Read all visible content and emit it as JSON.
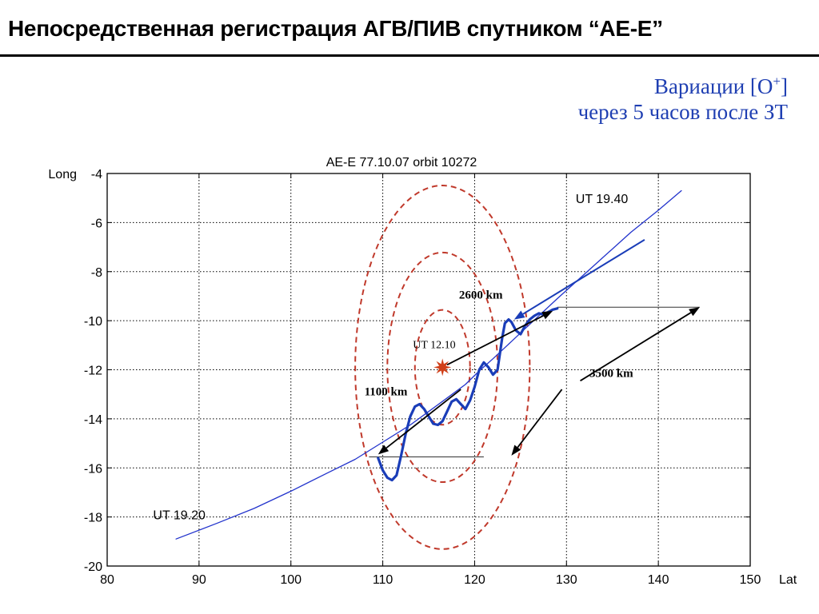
{
  "slide_title": "Непосредственная регистрация АГВ/ПИВ спутником “AE-E”",
  "note": {
    "line1_prefix": "Вариации [O",
    "line1_sup": "+",
    "line1_suffix": "]",
    "line2": "через 5 часов после ЗТ"
  },
  "colors": {
    "track": "#2233cc",
    "variation": "#1a3db8",
    "circles": "#c0392b",
    "arrows": "#000000",
    "note": "#1f3fb2"
  },
  "chart_data": {
    "type": "line",
    "title": "AE-E    77.10.07    orbit 10272",
    "xlabel": "Lat",
    "ylabel": "Long",
    "xlim": [
      80,
      150
    ],
    "ylim": [
      -20,
      -4
    ],
    "x_ticks": [
      80,
      90,
      100,
      110,
      120,
      130,
      140,
      150
    ],
    "y_ticks": [
      -4,
      -6,
      -8,
      -10,
      -12,
      -14,
      -16,
      -18,
      -20
    ],
    "grid": true,
    "series": [
      {
        "kind": "track",
        "x": [
          87.5,
          92,
          96,
          100,
          104,
          107,
          110,
          113,
          115,
          117,
          119,
          120.5,
          122,
          124,
          126,
          129,
          133,
          137,
          140,
          142.5
        ],
        "y": [
          -18.9,
          -18.25,
          -17.65,
          -16.95,
          -16.2,
          -15.65,
          -14.95,
          -14.25,
          -13.7,
          -13.15,
          -12.6,
          -12.05,
          -11.55,
          -10.85,
          -10.15,
          -9.1,
          -7.75,
          -6.4,
          -5.5,
          -4.7
        ]
      },
      {
        "kind": "variation",
        "x": [
          109.5,
          110,
          110.5,
          111,
          111.5,
          112,
          112.5,
          113,
          113.5,
          114,
          114.5,
          115,
          115.5,
          116,
          116.5,
          117,
          117.5,
          118,
          118.5,
          119,
          119.5,
          120,
          120.5,
          121,
          121.5,
          122,
          122.5,
          123,
          123.3,
          123.7,
          124,
          124.5,
          125,
          125.5,
          126,
          126.5,
          127,
          127.5,
          128,
          128.5,
          129
        ],
        "y": [
          -15.6,
          -16.1,
          -16.4,
          -16.5,
          -16.3,
          -15.5,
          -14.6,
          -13.9,
          -13.5,
          -13.4,
          -13.6,
          -13.9,
          -14.2,
          -14.25,
          -14.1,
          -13.7,
          -13.3,
          -13.2,
          -13.4,
          -13.6,
          -13.25,
          -12.7,
          -12.0,
          -11.7,
          -11.9,
          -12.2,
          -12.0,
          -10.7,
          -10.1,
          -9.95,
          -10.05,
          -10.4,
          -10.55,
          -10.2,
          -9.95,
          -9.8,
          -9.7,
          -9.75,
          -9.65,
          -9.55,
          -9.5
        ]
      }
    ],
    "center": {
      "x": 116.5,
      "y": -11.9,
      "label": "UT 12.10"
    },
    "circle_radii": [
      3,
      6,
      9.5
    ],
    "ref_lines": [
      {
        "x": [
          108.5,
          121
        ],
        "y": [
          -15.55,
          -15.55
        ]
      },
      {
        "x": [
          129,
          144.5
        ],
        "y": [
          -9.45,
          -9.45
        ]
      }
    ],
    "arrows": [
      {
        "from": [
          118.5,
          -12.8
        ],
        "to": [
          109.5,
          -15.45
        ]
      },
      {
        "from": [
          117,
          -11.8
        ],
        "to": [
          128.5,
          -9.6
        ]
      },
      {
        "from": [
          131.5,
          -12.45
        ],
        "to": [
          144.5,
          -9.45
        ]
      },
      {
        "from": [
          129.5,
          -12.8
        ],
        "to": [
          124,
          -15.5
        ]
      }
    ],
    "arrow_note": {
      "from": [
        138.5,
        -6.7
      ],
      "to": [
        124.3,
        -9.95
      ]
    },
    "annotations": [
      {
        "text": "2600 km",
        "x": 118.3,
        "y": -9.1
      },
      {
        "text": "1100 km",
        "x": 108,
        "y": -13.05
      },
      {
        "text": "3500 km",
        "x": 132.5,
        "y": -12.3
      },
      {
        "text": "UT 19.40",
        "x": 131,
        "y": -5.2
      },
      {
        "text": "UT 19.20",
        "x": 85,
        "y": -18.1
      }
    ]
  }
}
